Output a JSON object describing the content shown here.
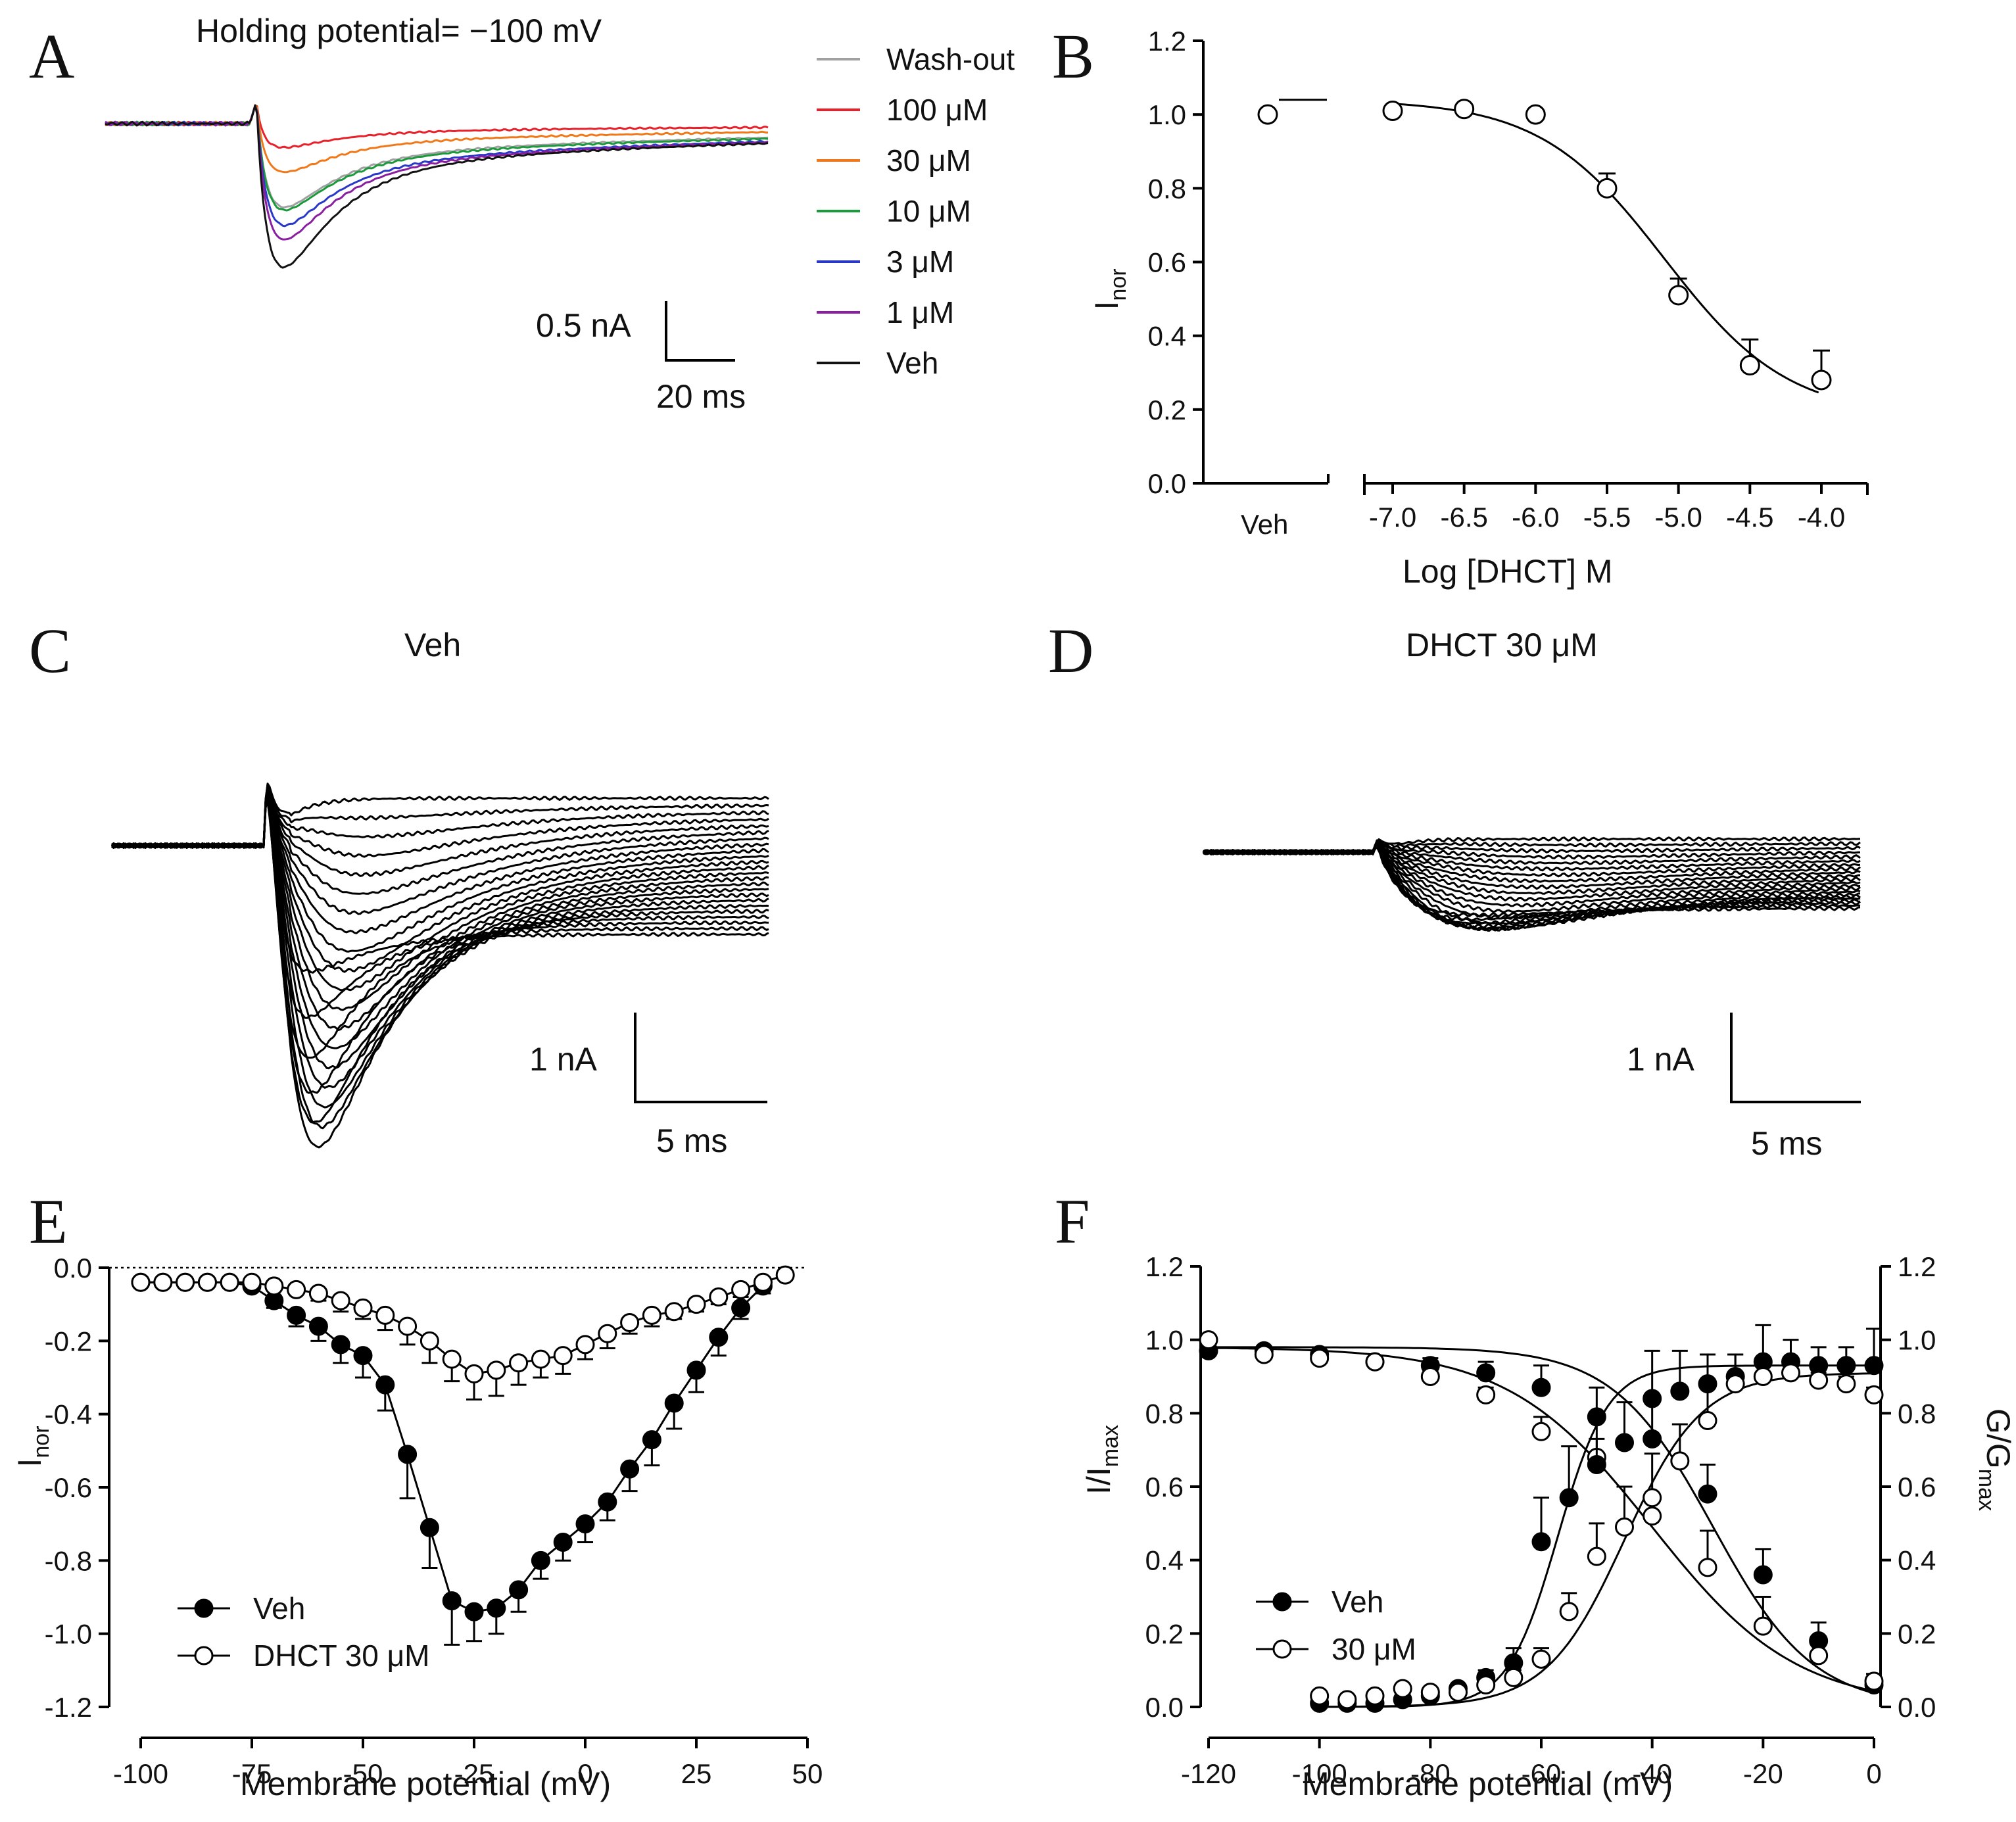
{
  "figure": {
    "panels": [
      "A",
      "B",
      "C",
      "D",
      "E",
      "F"
    ]
  },
  "chart_data": [
    {
      "id": "A",
      "type": "line",
      "title": "Holding potential= −100 mV",
      "series": [
        {
          "name": "Wash-out",
          "color": "#a0a0a0",
          "peak": 0.66,
          "late": 0.15
        },
        {
          "name": "100 μM",
          "color": "#e8202a",
          "peak": 0.19,
          "late": 0.04
        },
        {
          "name": "30 μM",
          "color": "#f07818",
          "peak": 0.38,
          "late": 0.09
        },
        {
          "name": "10 μM",
          "color": "#1a9a3a",
          "peak": 0.68,
          "late": 0.16
        },
        {
          "name": "3 μM",
          "color": "#2a38c8",
          "peak": 0.8,
          "late": 0.19
        },
        {
          "name": "1 μM",
          "color": "#8a1ea0",
          "peak": 0.92,
          "late": 0.2
        },
        {
          "name": "Veh",
          "color": "#111111",
          "peak": 1.16,
          "late": 0.21
        }
      ],
      "scale_bar": {
        "y": "0.5 nA",
        "x": "20 ms"
      }
    },
    {
      "id": "B",
      "type": "scatter",
      "title": "",
      "xlabel": "Log [DHCT] M",
      "ylabel": "I",
      "ylabel_sub": "nor",
      "ylim": [
        0,
        1.2
      ],
      "yticks": [
        "0.0",
        "0.2",
        "0.4",
        "0.6",
        "0.8",
        "1.0",
        "1.2"
      ],
      "xticks": [
        "-7.0",
        "-6.5",
        "-6.0",
        "-5.5",
        "-5.0",
        "-4.5",
        "-4.0"
      ],
      "veh_label": "Veh",
      "veh_point": {
        "y": 1.0
      },
      "x": [
        -7.0,
        -6.5,
        -6.0,
        -5.5,
        -5.0,
        -4.5,
        -4.0
      ],
      "y": [
        1.01,
        1.015,
        1.0,
        0.8,
        0.51,
        0.32,
        0.28
      ],
      "err": [
        0.0,
        0.0,
        0.0,
        0.04,
        0.045,
        0.07,
        0.08
      ],
      "fit": {
        "top": 1.04,
        "bottom": 0.18,
        "log_ic50": -5.1,
        "hill": 1.0
      }
    },
    {
      "id": "C",
      "type": "line",
      "title": "Veh",
      "scale_bar": {
        "y": "1 nA",
        "x": "5 ms"
      }
    },
    {
      "id": "D",
      "type": "line",
      "title": "DHCT 30 μM",
      "scale_bar": {
        "y": "1 nA",
        "x": "5 ms"
      }
    },
    {
      "id": "E",
      "type": "line",
      "xlabel": "Membrane potential (mV)",
      "ylabel": "I",
      "ylabel_sub": "nor",
      "xlim": [
        -100,
        50
      ],
      "ylim": [
        -1.2,
        0.0
      ],
      "xticks": [
        "-100",
        "-75",
        "-50",
        "-25",
        "0",
        "25",
        "50"
      ],
      "yticks": [
        "-1.2",
        "-1.0",
        "-0.8",
        "-0.6",
        "-0.4",
        "-0.2",
        "0.0"
      ],
      "legend": [
        "Veh",
        "DHCT 30 μM"
      ],
      "series": [
        {
          "name": "Veh",
          "filled": true,
          "x": [
            -100,
            -95,
            -90,
            -85,
            -80,
            -75,
            -70,
            -65,
            -60,
            -55,
            -50,
            -45,
            -40,
            -35,
            -30,
            -25,
            -20,
            -15,
            -10,
            -5,
            0,
            5,
            10,
            15,
            20,
            25,
            30,
            35,
            40
          ],
          "y": [
            -0.04,
            -0.04,
            -0.04,
            -0.04,
            -0.04,
            -0.05,
            -0.09,
            -0.13,
            -0.16,
            -0.21,
            -0.24,
            -0.32,
            -0.51,
            -0.71,
            -0.91,
            -0.94,
            -0.93,
            -0.88,
            -0.8,
            -0.75,
            -0.7,
            -0.64,
            -0.55,
            -0.47,
            -0.37,
            -0.28,
            -0.19,
            -0.11,
            -0.05
          ],
          "err": [
            0,
            0,
            0,
            0,
            0,
            0,
            0.02,
            0.03,
            0.04,
            0.05,
            0.06,
            0.07,
            0.12,
            0.11,
            0.12,
            0.08,
            0.07,
            0.06,
            0.05,
            0.05,
            0.05,
            0.05,
            0.06,
            0.07,
            0.07,
            0.06,
            0.05,
            0.03,
            0.02
          ]
        },
        {
          "name": "DHCT 30 μM",
          "filled": false,
          "x": [
            -100,
            -95,
            -90,
            -85,
            -80,
            -75,
            -70,
            -65,
            -60,
            -55,
            -50,
            -45,
            -40,
            -35,
            -30,
            -25,
            -20,
            -15,
            -10,
            -5,
            0,
            5,
            10,
            15,
            20,
            25,
            30,
            35,
            40,
            45
          ],
          "y": [
            -0.04,
            -0.04,
            -0.04,
            -0.04,
            -0.04,
            -0.04,
            -0.05,
            -0.06,
            -0.07,
            -0.09,
            -0.11,
            -0.13,
            -0.16,
            -0.2,
            -0.25,
            -0.29,
            -0.28,
            -0.26,
            -0.25,
            -0.24,
            -0.21,
            -0.18,
            -0.15,
            -0.13,
            -0.12,
            -0.1,
            -0.08,
            -0.06,
            -0.04,
            -0.02
          ],
          "err": [
            0,
            0,
            0,
            0,
            0,
            0,
            0.01,
            0.01,
            0.02,
            0.03,
            0.03,
            0.04,
            0.05,
            0.06,
            0.06,
            0.07,
            0.07,
            0.06,
            0.05,
            0.05,
            0.04,
            0.04,
            0.03,
            0.03,
            0.02,
            0.02,
            0.02,
            0.02,
            0.01,
            0.0
          ]
        }
      ]
    },
    {
      "id": "F",
      "type": "scatter",
      "xlabel": "Membrane potential (mV)",
      "ylabel": "I/I",
      "ylabel_sub": "max",
      "ylabel_right": "G/G",
      "ylabel_right_sub": "max",
      "xlim": [
        -120,
        0
      ],
      "ylim": [
        0,
        1.2
      ],
      "xticks": [
        "-120",
        "-100",
        "-80",
        "-60",
        "-40",
        "-20",
        "0"
      ],
      "yticks": [
        "0.0",
        "0.2",
        "0.4",
        "0.6",
        "0.8",
        "1.0",
        "1.2"
      ],
      "legend": [
        "Veh",
        "30 μM"
      ],
      "series": [
        {
          "name": "Veh inactivation",
          "filled": true,
          "x": [
            -120,
            -110,
            -100,
            -90,
            -80,
            -70,
            -60,
            -50,
            -40,
            -30,
            -20,
            -10,
            0
          ],
          "y": [
            0.97,
            0.97,
            0.96,
            0.94,
            0.93,
            0.91,
            0.87,
            0.79,
            0.73,
            0.58,
            0.36,
            0.18,
            0.06
          ],
          "err": [
            0.01,
            0.01,
            0.01,
            0.01,
            0.02,
            0.03,
            0.06,
            0.08,
            0.1,
            0.08,
            0.07,
            0.05,
            0.02
          ],
          "fit": {
            "v_half": -29,
            "k": 9
          }
        },
        {
          "name": "30 μM inactivation",
          "filled": false,
          "x": [
            -120,
            -110,
            -100,
            -90,
            -80,
            -70,
            -60,
            -50,
            -40,
            -30,
            -20,
            -10,
            0
          ],
          "y": [
            1.0,
            0.96,
            0.95,
            0.94,
            0.9,
            0.85,
            0.75,
            0.68,
            0.52,
            0.38,
            0.22,
            0.14,
            0.07
          ],
          "err": [
            0.01,
            0.01,
            0.01,
            0.01,
            0.02,
            0.02,
            0.04,
            0.05,
            0.05,
            0.1,
            0.08,
            0.04,
            0.02
          ],
          "fit": {
            "v_half": -40,
            "k": 13
          }
        },
        {
          "name": "Veh activation",
          "filled": true,
          "x": [
            -100,
            -95,
            -90,
            -85,
            -80,
            -75,
            -70,
            -65,
            -60,
            -55,
            -50,
            -45,
            -40,
            -35,
            -30,
            -25,
            -20,
            -15,
            -10,
            -5,
            0
          ],
          "y": [
            0.01,
            0.01,
            0.01,
            0.02,
            0.03,
            0.05,
            0.08,
            0.12,
            0.45,
            0.57,
            0.66,
            0.72,
            0.84,
            0.86,
            0.88,
            0.9,
            0.94,
            0.94,
            0.93,
            0.93,
            0.93
          ],
          "err": [
            0,
            0,
            0,
            0,
            0.01,
            0.01,
            0.02,
            0.04,
            0.12,
            0.14,
            0.12,
            0.11,
            0.13,
            0.11,
            0.08,
            0.06,
            0.1,
            0.06,
            0.05,
            0.05,
            0.1
          ],
          "fit": {
            "v_half": -57,
            "k": 4.5,
            "max": 0.93
          }
        },
        {
          "name": "30 μM activation",
          "filled": false,
          "x": [
            -100,
            -95,
            -90,
            -85,
            -80,
            -75,
            -70,
            -65,
            -60,
            -55,
            -50,
            -45,
            -40,
            -35,
            -30,
            -25,
            -20,
            -15,
            -10,
            -5,
            0
          ],
          "y": [
            0.03,
            0.02,
            0.03,
            0.05,
            0.04,
            0.04,
            0.06,
            0.08,
            0.13,
            0.26,
            0.41,
            0.49,
            0.57,
            0.67,
            0.78,
            0.88,
            0.9,
            0.91,
            0.89,
            0.88,
            0.85
          ],
          "err": [
            0,
            0,
            0,
            0.01,
            0.01,
            0.01,
            0.02,
            0.02,
            0.03,
            0.05,
            0.09,
            0.11,
            0.12,
            0.1,
            0.1,
            0.08,
            0.05,
            0.03,
            0.02,
            0.02,
            0.02
          ],
          "fit": {
            "v_half": -45,
            "k": 7,
            "max": 0.91
          }
        }
      ]
    }
  ]
}
